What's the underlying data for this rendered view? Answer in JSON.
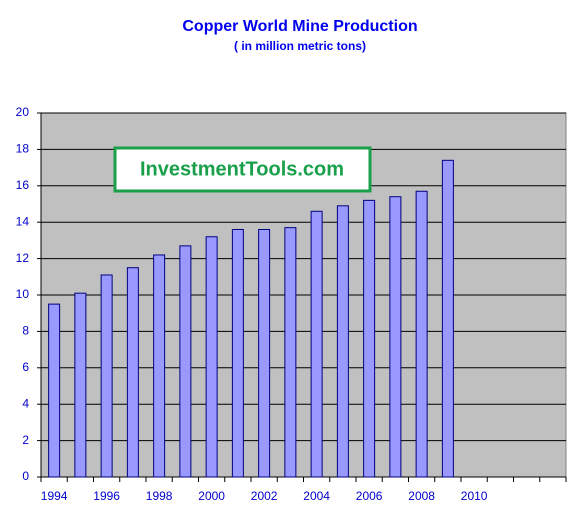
{
  "chart_data": {
    "type": "bar",
    "title": "Copper World Mine Production",
    "subtitle": "( in million metric tons)",
    "annotation": "InvestmentTools.com",
    "categories": [
      "1994",
      null,
      "1996",
      null,
      "1998",
      null,
      "2000",
      null,
      "2002",
      null,
      "2004",
      null,
      "2006",
      null,
      "2008",
      null,
      "2010",
      null,
      null,
      null
    ],
    "values": [
      9.5,
      10.1,
      11.1,
      11.5,
      12.2,
      12.7,
      13.2,
      13.6,
      13.6,
      13.7,
      14.6,
      14.9,
      15.2,
      15.4,
      15.7,
      17.4,
      null,
      null,
      null,
      null
    ],
    "color": "#9999ff",
    "ylim": [
      0,
      20
    ],
    "yticks": [
      0,
      2,
      4,
      6,
      8,
      10,
      12,
      14,
      16,
      18,
      20
    ],
    "grid": true
  }
}
